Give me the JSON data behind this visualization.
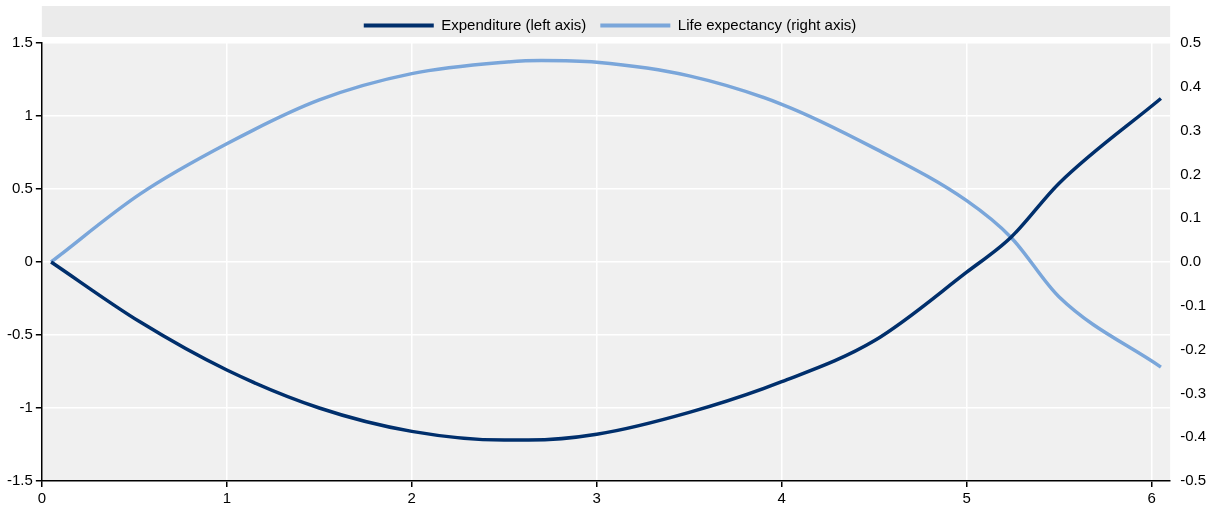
{
  "chart_data": {
    "type": "line",
    "legend": "top",
    "grid": true,
    "marker": "none",
    "line_style": "solid",
    "xlim": [
      0,
      6.1
    ],
    "xticks": [
      0,
      1,
      2,
      3,
      4,
      5,
      6
    ],
    "ylim": [
      -1.5,
      1.5
    ],
    "yticks": [
      -1.5,
      -1,
      -0.5,
      0,
      0.5,
      1,
      1.5
    ],
    "y2lim": [
      -0.5,
      0.5
    ],
    "y2ticks": [
      {
        "value": -0.5,
        "label": "-0.5"
      },
      {
        "value": -0.4,
        "label": "-0.4"
      },
      {
        "value": -0.3,
        "label": "-0.3"
      },
      {
        "value": -0.2,
        "label": "-0.2"
      },
      {
        "value": -0.1,
        "label": "-0.1"
      },
      {
        "value": 0,
        "label": "0.0"
      },
      {
        "value": 0.1,
        "label": "0.1"
      },
      {
        "value": 0.2,
        "label": "0.2"
      },
      {
        "value": 0.3,
        "label": "0.3"
      },
      {
        "value": 0.4,
        "label": "0.4"
      },
      {
        "value": 0.5,
        "label": "0.5"
      }
    ],
    "series": [
      {
        "name": "Expenditure (left axis)",
        "color": "#002f6c",
        "x": [
          0.05,
          0.53,
          1,
          1.5,
          2,
          2.5,
          2.63,
          3,
          3.5,
          4,
          4.5,
          5,
          5.24,
          5.5,
          6.05
        ],
        "values": [
          0,
          -0.41,
          -0.74,
          -1.0,
          -1.16,
          -1.22,
          -1.22,
          -1.18,
          -1.03,
          -0.82,
          -0.54,
          -0.07,
          0.17,
          0.54,
          1.12
        ]
      },
      {
        "name": "Life expectancy (right axis)",
        "color": "#7aa6da",
        "axis": "y2",
        "x": [
          0.05,
          0.53,
          1,
          1.5,
          2,
          2.5,
          2.7,
          3,
          3.5,
          4,
          4.5,
          5,
          5.24,
          5.5,
          6.05
        ],
        "values": [
          0,
          0.155,
          0.27,
          0.37,
          0.43,
          0.456,
          0.46,
          0.456,
          0.425,
          0.36,
          0.26,
          0.14,
          0.056,
          -0.08,
          -0.24
        ]
      }
    ]
  }
}
